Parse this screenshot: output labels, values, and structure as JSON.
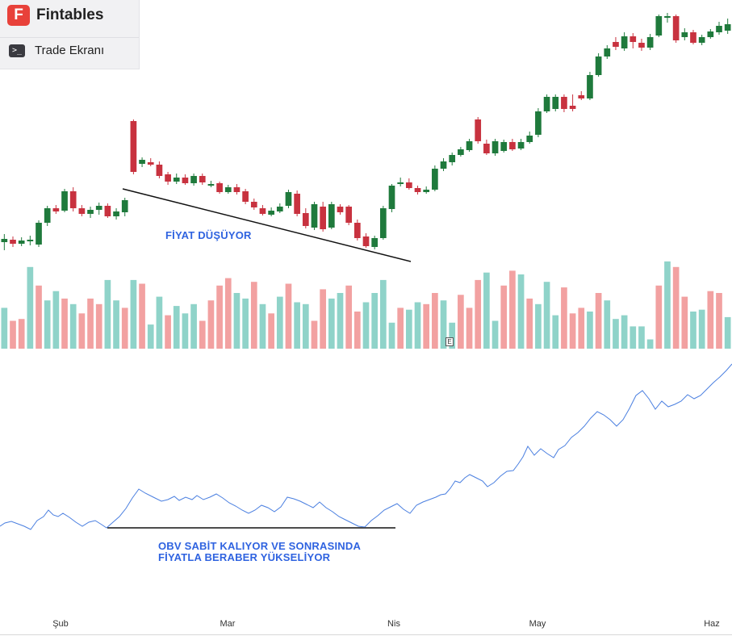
{
  "header": {
    "logo_letter": "F",
    "app_name": "Fintables",
    "menu_icon": "terminal-icon",
    "menu_label": "Trade Ekranı"
  },
  "annotations": {
    "price": "FİYAT DÜŞÜYOR",
    "obv_line1": "OBV SABİT KALIYOR VE SONRASINDA",
    "obv_line2": "FİYATLA BERABER YÜKSELİYOR"
  },
  "earnings_marker": "E",
  "x_axis_labels": [
    "Şub",
    "Mar",
    "Nis",
    "May",
    "Haz"
  ],
  "colors": {
    "up": "#1f7a3c",
    "down": "#c8323f",
    "vol_up": "#8fd3c9",
    "vol_down": "#f2a1a1",
    "obv_line": "#4a7fe0",
    "annotation": "#2f63e0"
  },
  "chart_data": {
    "type": "candlestick",
    "panels": [
      "price",
      "volume",
      "obv"
    ],
    "x_labels": [
      "Şub",
      "Mar",
      "Nis",
      "May",
      "Haz"
    ],
    "price_ohlc": [
      [
        300,
        296,
        290,
        310
      ],
      [
        297,
        302,
        293,
        306
      ],
      [
        302,
        298,
        294,
        305
      ],
      [
        299,
        297,
        292,
        304
      ],
      [
        303,
        276,
        273,
        306
      ],
      [
        276,
        258,
        255,
        280
      ],
      [
        258,
        262,
        254,
        265
      ],
      [
        261,
        237,
        234,
        263
      ],
      [
        237,
        258,
        232,
        262
      ],
      [
        258,
        265,
        254,
        268
      ],
      [
        265,
        260,
        256,
        270
      ],
      [
        260,
        255,
        251,
        266
      ],
      [
        255,
        268,
        252,
        270
      ],
      [
        268,
        262,
        258,
        272
      ],
      [
        263,
        248,
        245,
        268
      ],
      [
        150,
        213,
        148,
        216
      ],
      [
        203,
        198,
        195,
        207
      ],
      [
        201,
        204,
        196,
        206
      ],
      [
        204,
        218,
        200,
        221
      ],
      [
        216,
        225,
        213,
        229
      ],
      [
        225,
        220,
        215,
        228
      ],
      [
        220,
        227,
        216,
        229
      ],
      [
        227,
        218,
        215,
        230
      ],
      [
        218,
        226,
        215,
        229
      ],
      [
        228,
        228,
        224,
        232
      ],
      [
        227,
        238,
        225,
        240
      ],
      [
        238,
        232,
        229,
        240
      ],
      [
        232,
        238,
        228,
        241
      ],
      [
        237,
        250,
        234,
        253
      ],
      [
        250,
        257,
        246,
        260
      ],
      [
        258,
        265,
        254,
        267
      ],
      [
        266,
        261,
        257,
        268
      ],
      [
        262,
        256,
        252,
        264
      ],
      [
        255,
        238,
        235,
        258
      ],
      [
        240,
        265,
        236,
        268
      ],
      [
        264,
        280,
        258,
        283
      ],
      [
        282,
        253,
        250,
        285
      ],
      [
        256,
        284,
        250,
        287
      ],
      [
        282,
        253,
        250,
        284
      ],
      [
        256,
        263,
        253,
        266
      ],
      [
        256,
        276,
        254,
        279
      ],
      [
        276,
        295,
        272,
        298
      ],
      [
        293,
        305,
        289,
        307
      ],
      [
        306,
        295,
        292,
        309
      ],
      [
        295,
        258,
        255,
        297
      ],
      [
        259,
        230,
        228,
        263
      ],
      [
        228,
        226,
        220,
        231
      ],
      [
        226,
        233,
        221,
        235
      ],
      [
        233,
        238,
        230,
        241
      ],
      [
        238,
        235,
        231,
        240
      ],
      [
        235,
        209,
        205,
        237
      ],
      [
        209,
        200,
        196,
        212
      ],
      [
        201,
        192,
        189,
        205
      ],
      [
        192,
        185,
        182,
        194
      ],
      [
        186,
        175,
        172,
        188
      ],
      [
        148,
        175,
        145,
        178
      ],
      [
        178,
        190,
        173,
        192
      ],
      [
        190,
        175,
        172,
        193
      ],
      [
        187,
        176,
        173,
        189
      ],
      [
        176,
        185,
        172,
        187
      ],
      [
        184,
        176,
        172,
        186
      ],
      [
        176,
        168,
        163,
        178
      ],
      [
        167,
        138,
        134,
        170
      ],
      [
        138,
        120,
        117,
        140
      ],
      [
        135,
        120,
        117,
        138
      ],
      [
        120,
        135,
        117,
        139
      ],
      [
        131,
        135,
        117,
        138
      ],
      [
        118,
        122,
        113,
        124
      ],
      [
        122,
        93,
        89,
        124
      ],
      [
        93,
        70,
        66,
        95
      ],
      [
        70,
        60,
        56,
        73
      ],
      [
        52,
        58,
        46,
        62
      ],
      [
        60,
        45,
        40,
        63
      ],
      [
        45,
        52,
        41,
        60
      ],
      [
        53,
        59,
        48,
        63
      ],
      [
        59,
        46,
        42,
        62
      ],
      [
        44,
        20,
        18,
        46
      ],
      [
        22,
        20,
        16,
        28
      ],
      [
        20,
        50,
        18,
        53
      ],
      [
        46,
        40,
        35,
        50
      ],
      [
        40,
        53,
        37,
        55
      ],
      [
        53,
        46,
        43,
        56
      ],
      [
        46,
        39,
        36,
        48
      ],
      [
        40,
        32,
        27,
        43
      ],
      [
        38,
        30,
        23,
        42
      ]
    ],
    "volume": [
      [
        22,
        0
      ],
      [
        15,
        1
      ],
      [
        16,
        1
      ],
      [
        44,
        0
      ],
      [
        34,
        1
      ],
      [
        26,
        0
      ],
      [
        31,
        0
      ],
      [
        27,
        1
      ],
      [
        24,
        0
      ],
      [
        19,
        1
      ],
      [
        27,
        1
      ],
      [
        24,
        1
      ],
      [
        37,
        0
      ],
      [
        26,
        0
      ],
      [
        22,
        1
      ],
      [
        37,
        0
      ],
      [
        35,
        1
      ],
      [
        13,
        0
      ],
      [
        28,
        0
      ],
      [
        18,
        1
      ],
      [
        23,
        0
      ],
      [
        19,
        0
      ],
      [
        24,
        0
      ],
      [
        15,
        1
      ],
      [
        26,
        1
      ],
      [
        34,
        1
      ],
      [
        38,
        1
      ],
      [
        30,
        0
      ],
      [
        27,
        0
      ],
      [
        36,
        1
      ],
      [
        24,
        0
      ],
      [
        19,
        1
      ],
      [
        28,
        0
      ],
      [
        35,
        1
      ],
      [
        25,
        0
      ],
      [
        24,
        0
      ],
      [
        15,
        1
      ],
      [
        32,
        1
      ],
      [
        27,
        0
      ],
      [
        30,
        0
      ],
      [
        34,
        1
      ],
      [
        20,
        1
      ],
      [
        25,
        0
      ],
      [
        30,
        0
      ],
      [
        37,
        0
      ],
      [
        14,
        0
      ],
      [
        22,
        1
      ],
      [
        21,
        0
      ],
      [
        25,
        0
      ],
      [
        24,
        1
      ],
      [
        30,
        1
      ],
      [
        26,
        0
      ],
      [
        14,
        0
      ],
      [
        29,
        1
      ],
      [
        22,
        1
      ],
      [
        37,
        1
      ],
      [
        41,
        0
      ],
      [
        15,
        0
      ],
      [
        34,
        1
      ],
      [
        42,
        1
      ],
      [
        40,
        0
      ],
      [
        27,
        1
      ],
      [
        24,
        0
      ],
      [
        36,
        0
      ],
      [
        18,
        0
      ],
      [
        33,
        1
      ],
      [
        19,
        1
      ],
      [
        22,
        1
      ],
      [
        20,
        0
      ],
      [
        30,
        1
      ],
      [
        26,
        0
      ],
      [
        16,
        0
      ],
      [
        18,
        0
      ],
      [
        12,
        0
      ],
      [
        12,
        0
      ],
      [
        5,
        0
      ],
      [
        34,
        1
      ],
      [
        47,
        0
      ],
      [
        44,
        1
      ],
      [
        28,
        1
      ],
      [
        20,
        0
      ],
      [
        21,
        0
      ],
      [
        31,
        1
      ],
      [
        30,
        1
      ],
      [
        17,
        0
      ]
    ],
    "obv": [
      [
        0,
        652
      ],
      [
        6,
        648
      ],
      [
        14,
        646
      ],
      [
        22,
        649
      ],
      [
        30,
        652
      ],
      [
        38,
        656
      ],
      [
        46,
        645
      ],
      [
        54,
        640
      ],
      [
        60,
        632
      ],
      [
        66,
        638
      ],
      [
        72,
        640
      ],
      [
        78,
        636
      ],
      [
        86,
        641
      ],
      [
        94,
        647
      ],
      [
        102,
        652
      ],
      [
        110,
        647
      ],
      [
        118,
        645
      ],
      [
        126,
        650
      ],
      [
        132,
        654
      ],
      [
        140,
        647
      ],
      [
        148,
        640
      ],
      [
        156,
        630
      ],
      [
        164,
        617
      ],
      [
        172,
        606
      ],
      [
        180,
        611
      ],
      [
        190,
        616
      ],
      [
        200,
        621
      ],
      [
        208,
        619
      ],
      [
        216,
        615
      ],
      [
        222,
        620
      ],
      [
        230,
        616
      ],
      [
        238,
        619
      ],
      [
        244,
        614
      ],
      [
        252,
        619
      ],
      [
        260,
        616
      ],
      [
        268,
        612
      ],
      [
        276,
        617
      ],
      [
        284,
        623
      ],
      [
        292,
        627
      ],
      [
        300,
        632
      ],
      [
        308,
        636
      ],
      [
        316,
        632
      ],
      [
        324,
        626
      ],
      [
        332,
        629
      ],
      [
        340,
        634
      ],
      [
        348,
        628
      ],
      [
        356,
        616
      ],
      [
        364,
        618
      ],
      [
        372,
        621
      ],
      [
        380,
        625
      ],
      [
        388,
        629
      ],
      [
        396,
        622
      ],
      [
        404,
        629
      ],
      [
        412,
        634
      ],
      [
        420,
        640
      ],
      [
        428,
        644
      ],
      [
        436,
        648
      ],
      [
        444,
        652
      ],
      [
        452,
        653
      ],
      [
        460,
        645
      ],
      [
        468,
        639
      ],
      [
        476,
        632
      ],
      [
        484,
        628
      ],
      [
        492,
        624
      ],
      [
        500,
        631
      ],
      [
        508,
        636
      ],
      [
        516,
        626
      ],
      [
        524,
        622
      ],
      [
        532,
        619
      ],
      [
        540,
        616
      ],
      [
        546,
        613
      ],
      [
        552,
        612
      ],
      [
        558,
        605
      ],
      [
        564,
        596
      ],
      [
        570,
        598
      ],
      [
        576,
        592
      ],
      [
        582,
        588
      ],
      [
        590,
        592
      ],
      [
        598,
        596
      ],
      [
        604,
        603
      ],
      [
        612,
        598
      ],
      [
        620,
        590
      ],
      [
        628,
        584
      ],
      [
        636,
        583
      ],
      [
        642,
        575
      ],
      [
        648,
        566
      ],
      [
        654,
        553
      ],
      [
        662,
        564
      ],
      [
        670,
        556
      ],
      [
        678,
        562
      ],
      [
        686,
        567
      ],
      [
        692,
        557
      ],
      [
        700,
        552
      ],
      [
        708,
        542
      ],
      [
        716,
        536
      ],
      [
        724,
        528
      ],
      [
        732,
        518
      ],
      [
        740,
        510
      ],
      [
        748,
        514
      ],
      [
        756,
        520
      ],
      [
        764,
        528
      ],
      [
        772,
        520
      ],
      [
        780,
        506
      ],
      [
        788,
        490
      ],
      [
        796,
        484
      ],
      [
        804,
        494
      ],
      [
        812,
        507
      ],
      [
        820,
        497
      ],
      [
        828,
        504
      ],
      [
        836,
        501
      ],
      [
        844,
        497
      ],
      [
        852,
        489
      ],
      [
        860,
        494
      ],
      [
        868,
        490
      ],
      [
        876,
        482
      ],
      [
        884,
        474
      ],
      [
        892,
        467
      ],
      [
        900,
        459
      ],
      [
        907,
        451
      ]
    ],
    "price_annotation": "FİYAT DÜŞÜYOR",
    "obv_annotation": "OBV SABİT KALIYOR VE SONRASINDA FİYATLA BERABER YÜKSELİYOR",
    "legend": "none",
    "grid": false
  }
}
